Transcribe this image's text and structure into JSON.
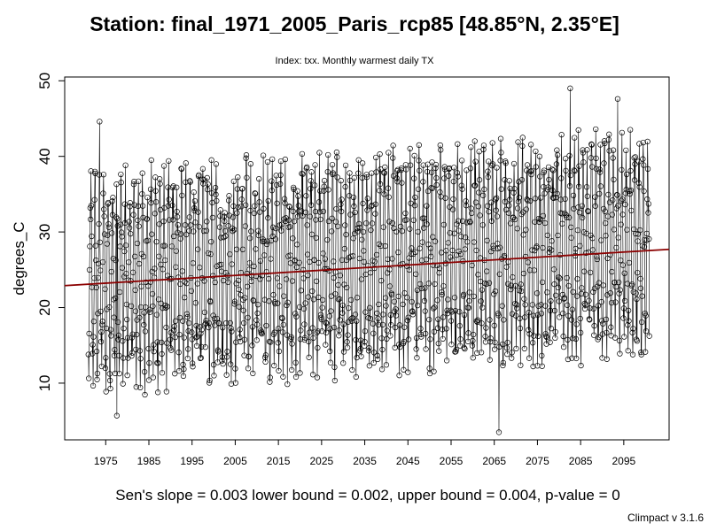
{
  "header": {
    "title": "Station: final_1971_2005_Paris_rcp85 [48.85°N, 2.35°E]",
    "subtitle": "Index: txx. Monthly warmest daily TX"
  },
  "footer": {
    "stats": "Sen's slope = 0.003   lower bound = 0.002,   upper bound = 0.004,   p-value = 0",
    "version": "Climpact v 3.1.6"
  },
  "chart_data": {
    "type": "line",
    "title": "Station: final_1971_2005_Paris_rcp85 [48.85°N, 2.35°E]",
    "subtitle": "Index: txx. Monthly warmest daily TX",
    "xlabel": "",
    "ylabel": "degrees_C",
    "x_ticks": [
      "1975",
      "1985",
      "1995",
      "2005",
      "2015",
      "2025",
      "2035",
      "2045",
      "2055",
      "2065",
      "2075",
      "2085",
      "2095"
    ],
    "y_ticks": [
      10,
      20,
      30,
      40,
      50
    ],
    "xlim": [
      1965.5,
      2105.5
    ],
    "ylim": [
      2.5,
      50.5
    ],
    "grid": false,
    "legend": "none",
    "series": [
      {
        "start_year": 1971,
        "end_year": 2100,
        "frequency": "monthly",
        "approx_summer_peak_first_year": 35,
        "approx_summer_peak_last_year": 40,
        "approx_winter_trough_first_year": 12,
        "approx_winter_trough_last_year": 17,
        "marker": "open-circle",
        "color": "#000000",
        "notable_values": [
          {
            "year": 1977.6,
            "value": 5.7
          },
          {
            "year": 2066.1,
            "value": 3.5
          },
          {
            "year": 2082.6,
            "value": 49
          },
          {
            "year": 1973.6,
            "value": 44.6
          },
          {
            "year": 2093.6,
            "value": 47.6
          }
        ]
      }
    ],
    "trend_line": {
      "color": "#8b0000",
      "x": [
        1965.5,
        2105.5
      ],
      "y": [
        22.9,
        27.7
      ]
    },
    "stats": {
      "sens_slope": 0.003,
      "lower_bound": 0.002,
      "upper_bound": 0.004,
      "p_value": 0
    }
  }
}
